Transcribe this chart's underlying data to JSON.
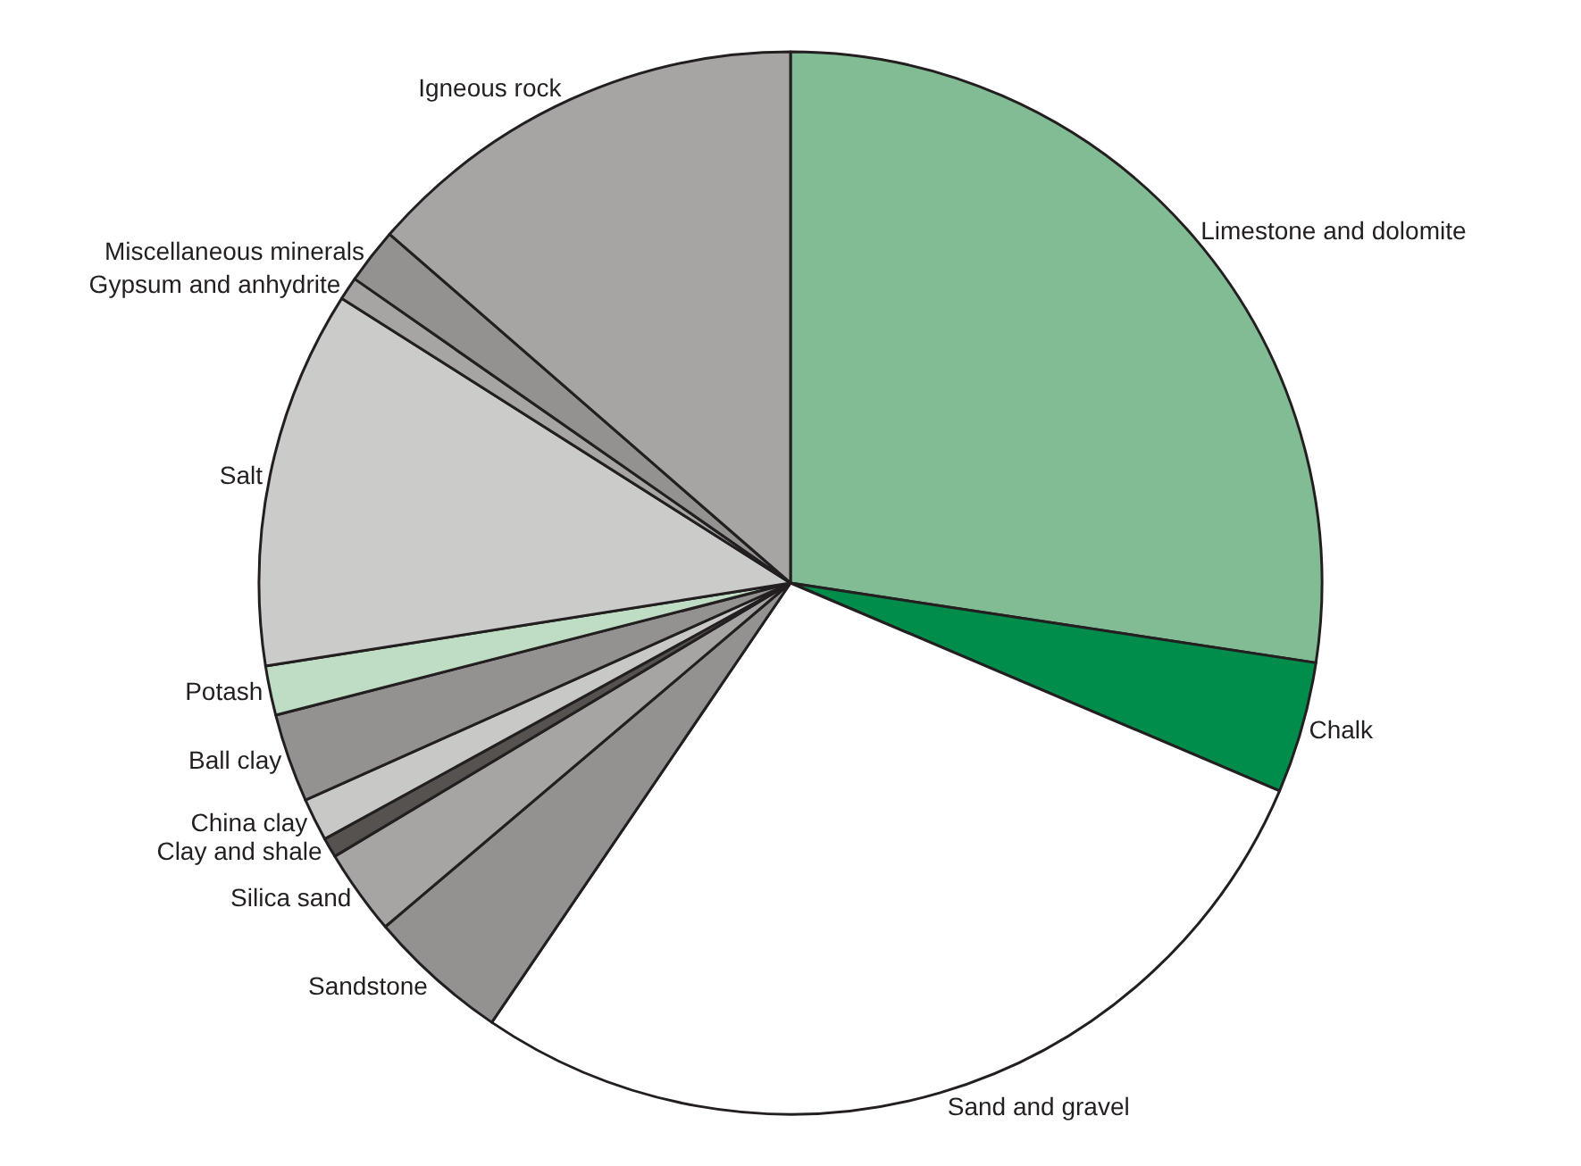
{
  "chart_data": {
    "type": "pie",
    "categories": [
      "Limestone and dolomite",
      "Chalk",
      "Sand and gravel",
      "Sandstone",
      "Silica sand",
      "Clay and shale",
      "China clay",
      "Ball clay",
      "Potash",
      "Salt",
      "Gypsum and anhydrite",
      "Miscellaneous minerals",
      "Igneous rock"
    ],
    "values": [
      27.4,
      4.0,
      28.1,
      4.3,
      2.6,
      0.6,
      1.3,
      2.7,
      1.5,
      11.5,
      0.7,
      1.7,
      13.6
    ],
    "colors": [
      "#82bc94",
      "#008c4a",
      "#ffffff",
      "#949290",
      "#a7a5a3",
      "#555250",
      "#c8c8c6",
      "#949290",
      "#bfdcc4",
      "#cbcbca",
      "#a7a5a3",
      "#949290",
      "#a7a5a3"
    ]
  }
}
